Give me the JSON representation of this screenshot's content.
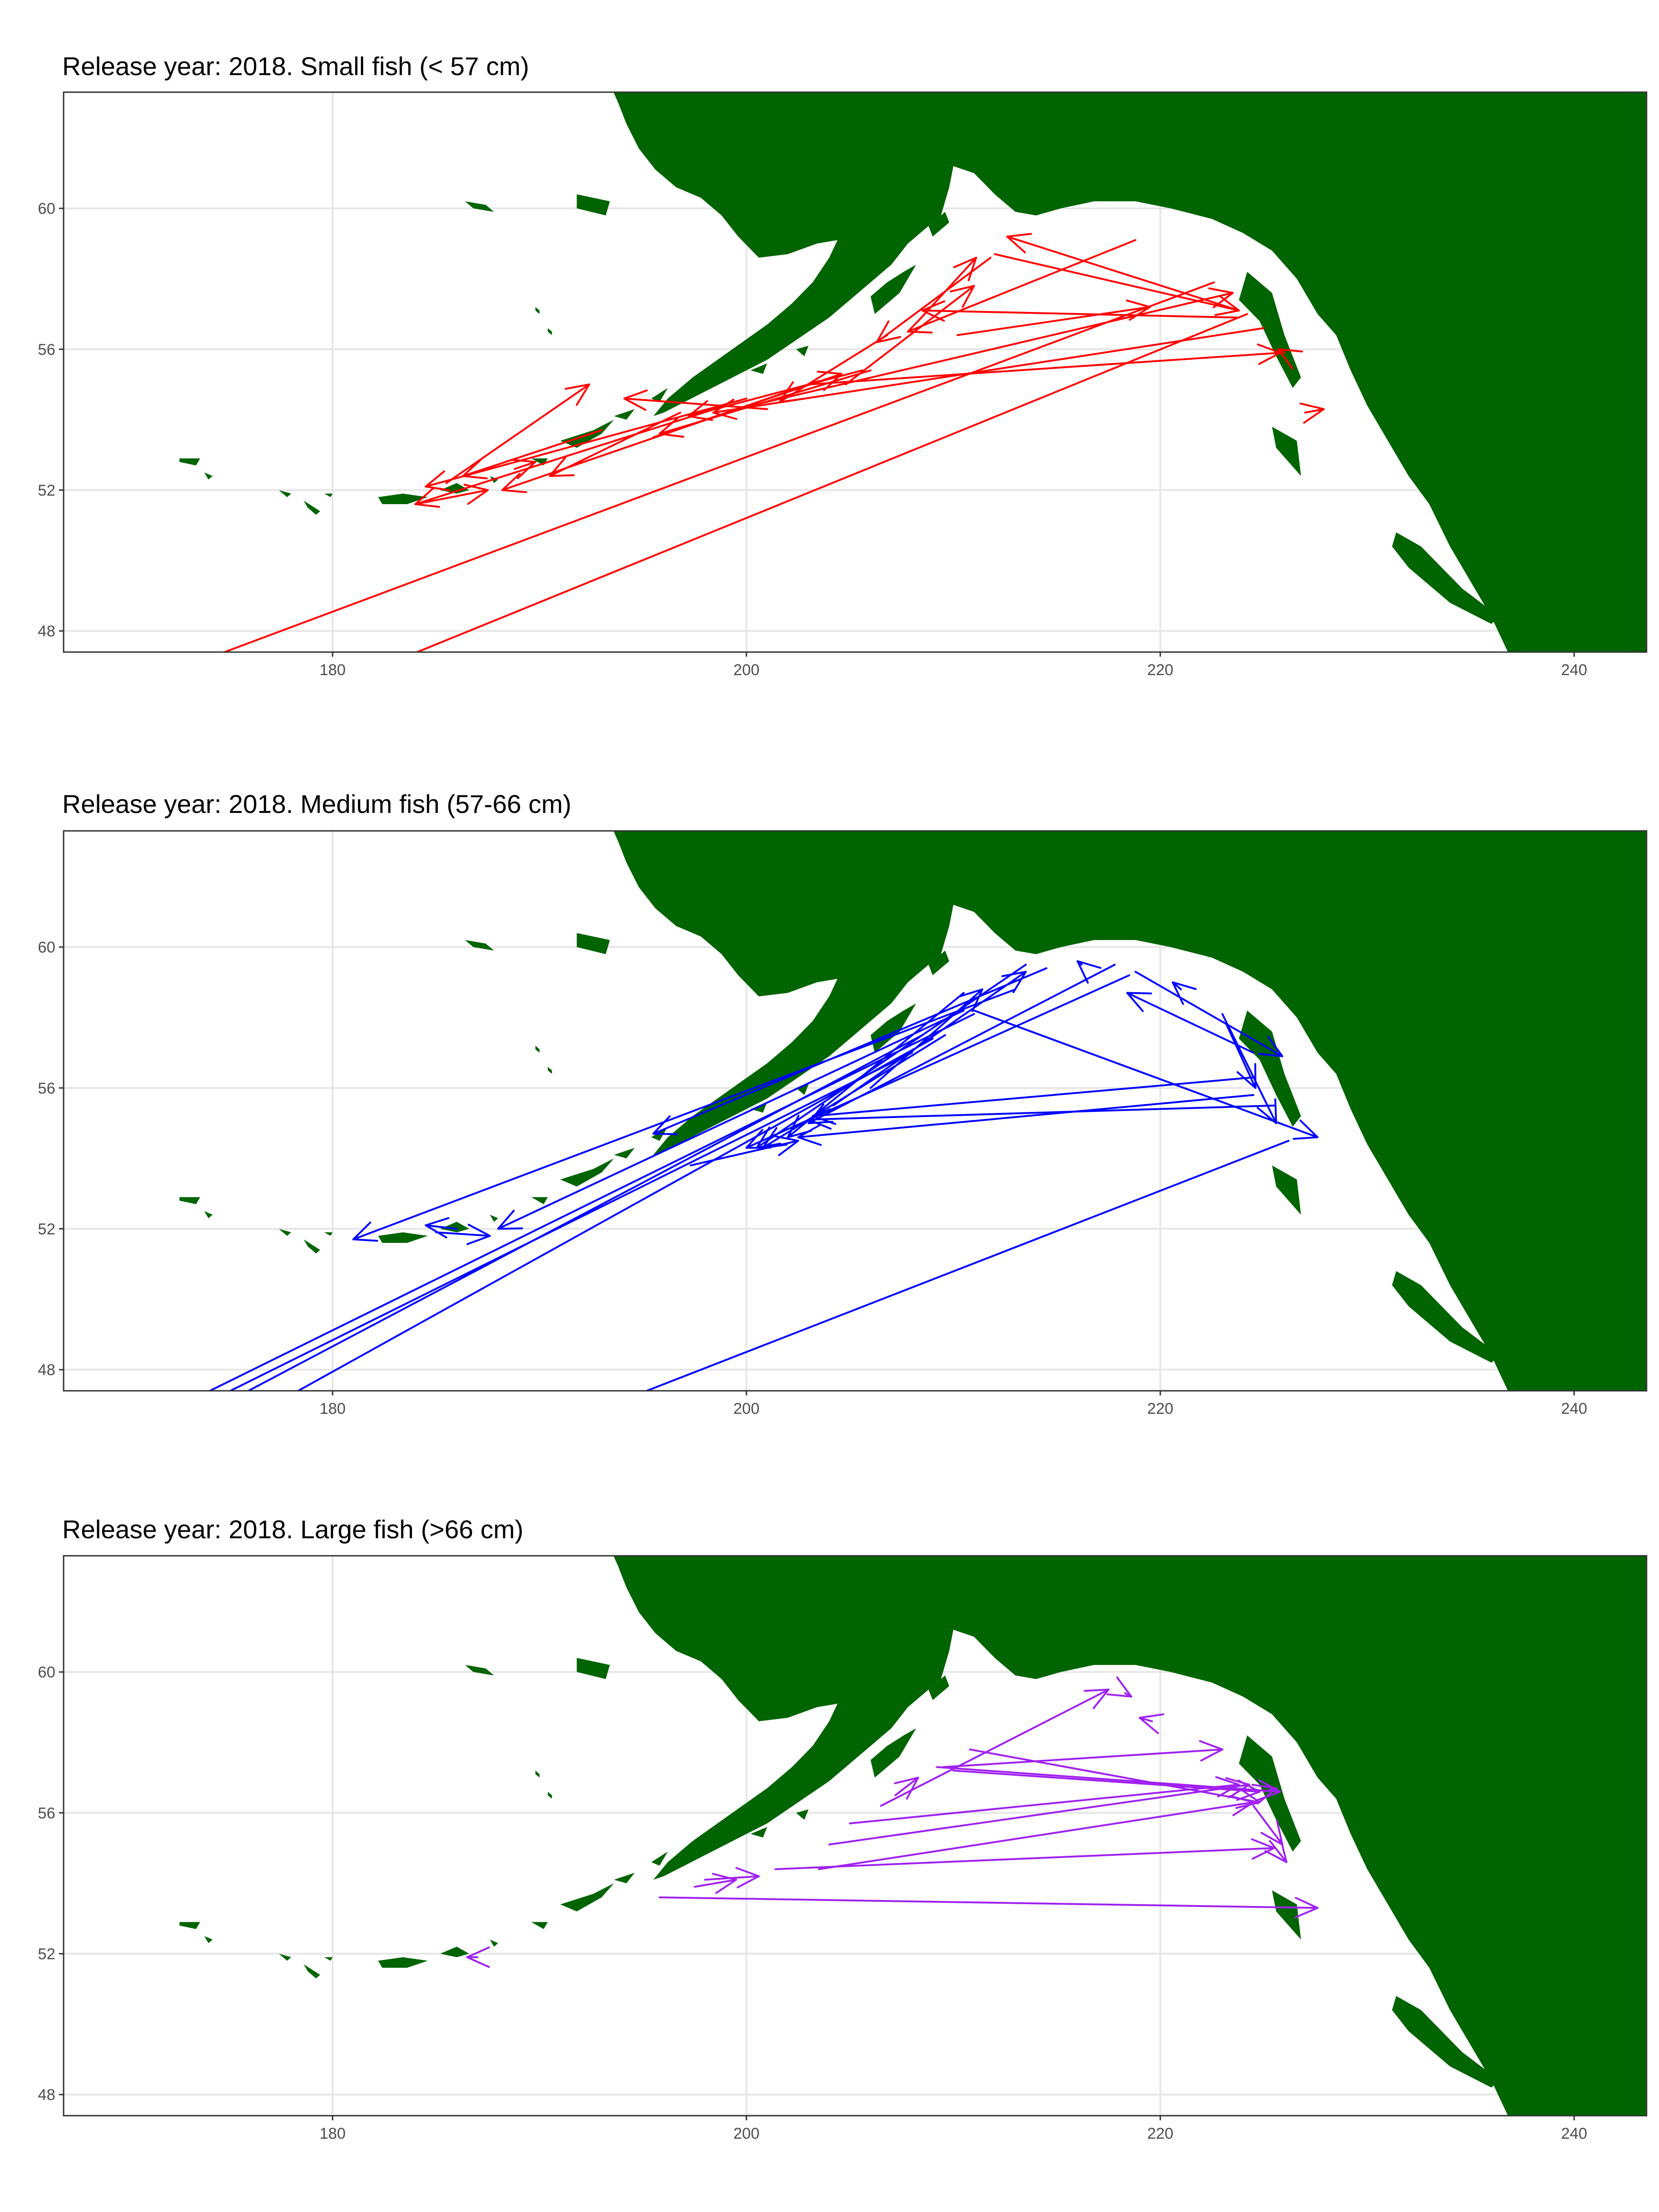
{
  "map": {
    "projection": "equirectangular (longitude 0-360)",
    "xlim": [
      167,
      243.5
    ],
    "ylim": [
      47.4,
      63.3
    ],
    "x_ticks": [
      180,
      200,
      220,
      240
    ],
    "y_ticks": [
      48,
      52,
      56,
      60
    ],
    "land_color": "#006400",
    "background": "#ffffff",
    "grid": true,
    "legend": "none"
  },
  "panels": [
    {
      "title": "Release year: 2018. Small fish (< 57 cm)",
      "color": "#ff0000",
      "tracks": [
        [
          [
            204.8,
            55.0
          ],
          [
            211.0,
            57.8
          ]
        ],
        [
          [
            208.3,
            56.8
          ],
          [
            211.1,
            58.6
          ]
        ],
        [
          [
            211.8,
            58.6
          ],
          [
            206.3,
            56.2
          ]
        ],
        [
          [
            212.0,
            58.7
          ],
          [
            223.8,
            57.1
          ]
        ],
        [
          [
            223.8,
            57.1
          ],
          [
            212.6,
            59.2
          ]
        ],
        [
          [
            218.8,
            59.1
          ],
          [
            207.8,
            56.5
          ]
        ],
        [
          [
            206.8,
            56.4
          ],
          [
            201.6,
            54.5
          ]
        ],
        [
          [
            199.5,
            54.3
          ],
          [
            223.5,
            57.6
          ]
        ],
        [
          [
            223.7,
            56.9
          ],
          [
            208.5,
            57.1
          ]
        ],
        [
          [
            210.2,
            56.4
          ],
          [
            219.5,
            57.2
          ]
        ],
        [
          [
            203.5,
            55.1
          ],
          [
            188.2,
            52.0
          ]
        ],
        [
          [
            200.0,
            54.6
          ],
          [
            184.5,
            52.1
          ]
        ],
        [
          [
            199.0,
            54.4
          ],
          [
            184.0,
            51.6
          ]
        ],
        [
          [
            184.0,
            51.6
          ],
          [
            187.5,
            52.0
          ]
        ],
        [
          [
            185.5,
            52.2
          ],
          [
            192.4,
            55.0
          ]
        ],
        [
          [
            193.0,
            53.7
          ],
          [
            186.3,
            52.4
          ]
        ],
        [
          [
            196.8,
            54.2
          ],
          [
            190.5,
            52.4
          ]
        ],
        [
          [
            201.0,
            54.3
          ],
          [
            194.1,
            54.6
          ]
        ],
        [
          [
            195.5,
            53.5
          ],
          [
            204.6,
            55.3
          ]
        ],
        [
          [
            205.6,
            55.4
          ],
          [
            197.2,
            54.1
          ]
        ],
        [
          [
            206.0,
            55.4
          ],
          [
            195.8,
            53.6
          ]
        ],
        [
          [
            225.0,
            56.6
          ],
          [
            198.4,
            54.2
          ]
        ],
        [
          [
            203.0,
            55.0
          ],
          [
            225.8,
            55.9
          ]
        ],
        [
          [
            226.0,
            55.9
          ],
          [
            225.7,
            56.0
          ]
        ],
        [
          [
            227.0,
            54.2
          ],
          [
            227.9,
            54.3
          ]
        ],
        [
          [
            188.8,
            52.6
          ],
          [
            189.8,
            52.8
          ]
        ],
        [
          [
            222.6,
            57.9
          ],
          [
            172.5,
            46.9
          ]
        ],
        [
          [
            224.2,
            57.0
          ],
          [
            182.0,
            46.9
          ]
        ]
      ]
    },
    {
      "title": "Release year: 2018. Medium fish (57-66 cm)",
      "color": "#0000ff",
      "tracks": [
        [
          [
            218.5,
            59.2
          ],
          [
            200.0,
            54.3
          ]
        ],
        [
          [
            217.8,
            59.5
          ],
          [
            203.0,
            55.0
          ]
        ],
        [
          [
            213.5,
            59.5
          ],
          [
            200.5,
            54.3
          ]
        ],
        [
          [
            214.5,
            59.4
          ],
          [
            195.5,
            54.7
          ]
        ],
        [
          [
            210.5,
            58.2
          ],
          [
            188.0,
            52.0
          ]
        ],
        [
          [
            213.0,
            58.8
          ],
          [
            181.0,
            51.7
          ]
        ],
        [
          [
            210.5,
            58.7
          ],
          [
            202.0,
            54.6
          ]
        ],
        [
          [
            209.6,
            57.5
          ],
          [
            200.8,
            54.3
          ]
        ],
        [
          [
            211.0,
            58.1
          ],
          [
            172.0,
            46.8
          ]
        ],
        [
          [
            208.0,
            57.0
          ],
          [
            173.0,
            46.8
          ]
        ],
        [
          [
            208.5,
            57.5
          ],
          [
            174.0,
            46.8
          ]
        ],
        [
          [
            209.0,
            57.4
          ],
          [
            176.5,
            46.8
          ]
        ],
        [
          [
            226.2,
            54.5
          ],
          [
            193.0,
            46.9
          ]
        ],
        [
          [
            224.5,
            56.3
          ],
          [
            203.2,
            55.2
          ]
        ],
        [
          [
            224.5,
            55.8
          ],
          [
            202.5,
            54.6
          ]
        ],
        [
          [
            225.5,
            55.5
          ],
          [
            203.0,
            55.1
          ]
        ],
        [
          [
            211.0,
            58.2
          ],
          [
            227.6,
            54.6
          ]
        ],
        [
          [
            223.0,
            58.1
          ],
          [
            225.6,
            55.0
          ]
        ],
        [
          [
            224.5,
            57.0
          ],
          [
            218.4,
            58.7
          ]
        ],
        [
          [
            218.8,
            59.3
          ],
          [
            225.9,
            56.9
          ]
        ],
        [
          [
            223.2,
            57.8
          ],
          [
            224.6,
            56.0
          ]
        ],
        [
          [
            221.0,
            58.8
          ],
          [
            220.6,
            59.0
          ]
        ],
        [
          [
            216.2,
            59.5
          ],
          [
            216.0,
            59.6
          ]
        ],
        [
          [
            186.0,
            52.0
          ],
          [
            184.5,
            52.1
          ]
        ],
        [
          [
            185.0,
            51.9
          ],
          [
            187.6,
            51.8
          ]
        ],
        [
          [
            197.3,
            53.8
          ],
          [
            202.5,
            54.5
          ]
        ],
        [
          [
            204.2,
            55.5
          ],
          [
            213.5,
            59.3
          ]
        ],
        [
          [
            206.0,
            56.0
          ],
          [
            211.4,
            58.8
          ]
        ]
      ]
    },
    {
      "title": "Release year: 2018. Large fish (>66 cm)",
      "color": "#a020f0",
      "tracks": [
        [
          [
            195.8,
            53.6
          ],
          [
            227.6,
            53.3
          ]
        ],
        [
          [
            197.5,
            53.9
          ],
          [
            199.5,
            54.1
          ]
        ],
        [
          [
            198.0,
            54.1
          ],
          [
            200.6,
            54.2
          ]
        ],
        [
          [
            201.4,
            54.4
          ],
          [
            225.5,
            55.0
          ]
        ],
        [
          [
            203.5,
            54.4
          ],
          [
            224.5,
            56.3
          ]
        ],
        [
          [
            204.0,
            55.1
          ],
          [
            224.3,
            56.8
          ]
        ],
        [
          [
            209.2,
            57.3
          ],
          [
            225.8,
            56.6
          ]
        ],
        [
          [
            210.8,
            57.8
          ],
          [
            224.8,
            56.3
          ]
        ],
        [
          [
            205.0,
            55.7
          ],
          [
            223.8,
            56.8
          ]
        ],
        [
          [
            210.0,
            57.2
          ],
          [
            224.8,
            56.6
          ]
        ],
        [
          [
            206.5,
            56.2
          ],
          [
            217.5,
            59.5
          ]
        ],
        [
          [
            207.2,
            56.5
          ],
          [
            208.3,
            57.0
          ]
        ],
        [
          [
            209.5,
            57.3
          ],
          [
            223.0,
            57.8
          ]
        ],
        [
          [
            224.5,
            56.2
          ],
          [
            225.9,
            55.1
          ]
        ],
        [
          [
            225.3,
            55.2
          ],
          [
            226.1,
            54.6
          ]
        ],
        [
          [
            225.0,
            56.6
          ],
          [
            225.6,
            56.7
          ]
        ],
        [
          [
            218.3,
            59.4
          ],
          [
            218.6,
            59.3
          ]
        ],
        [
          [
            219.6,
            58.6
          ],
          [
            219.0,
            58.7
          ]
        ],
        [
          [
            187.0,
            51.9
          ],
          [
            186.5,
            51.9
          ]
        ]
      ]
    }
  ]
}
